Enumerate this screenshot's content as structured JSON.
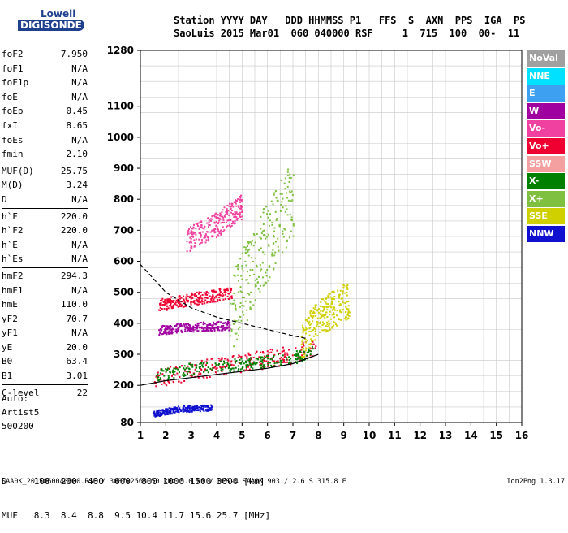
{
  "logo": {
    "line1": "Lowell",
    "line2": "DIGISONDE"
  },
  "header": {
    "row1": "Station YYYY DAY   DDD HHMMSS P1   FFS  S  AXN  PPS  IGA  PS",
    "row2": "SaoLuis 2015 Mar01  060 040000 RSF     1  715  100  00-  11"
  },
  "params": {
    "group1": [
      {
        "k": "foF2",
        "v": "7.950"
      },
      {
        "k": "foF1",
        "v": "N/A"
      },
      {
        "k": "foF1p",
        "v": "N/A"
      },
      {
        "k": "foE",
        "v": "N/A"
      },
      {
        "k": "foEp",
        "v": "0.45"
      },
      {
        "k": "fxI",
        "v": "8.65"
      },
      {
        "k": "foEs",
        "v": "N/A"
      },
      {
        "k": "fmin",
        "v": "2.10"
      }
    ],
    "group2": [
      {
        "k": "MUF(D)",
        "v": "25.75"
      },
      {
        "k": "M(D)",
        "v": "3.24"
      },
      {
        "k": "D",
        "v": "N/A"
      }
    ],
    "group3": [
      {
        "k": "h`F",
        "v": "220.0"
      },
      {
        "k": "h`F2",
        "v": "220.0"
      },
      {
        "k": "h`E",
        "v": "N/A"
      },
      {
        "k": "h`Es",
        "v": "N/A"
      }
    ],
    "group4": [
      {
        "k": "hmF2",
        "v": "294.3"
      },
      {
        "k": "hmF1",
        "v": "N/A"
      },
      {
        "k": "hmE",
        "v": "110.0"
      },
      {
        "k": "yF2",
        "v": "70.7"
      },
      {
        "k": "yF1",
        "v": "N/A"
      },
      {
        "k": "yE",
        "v": "20.0"
      },
      {
        "k": "B0",
        "v": "63.4"
      },
      {
        "k": "B1",
        "v": "3.01"
      }
    ],
    "group5": [
      {
        "k": "C-level",
        "v": "22"
      }
    ]
  },
  "auto": {
    "l1": "Auto:",
    "l2": "Artist5",
    "l3": "500200"
  },
  "dmuf": {
    "d_row": "D     100  200  400  600  800 1000 1500 3000 [km]",
    "muf_row": "MUF   8.3  8.4  8.8  9.5 10.4 11.7 15.6 25.7 [MHz]"
  },
  "footer": {
    "left": "SAA0K_2015060040000.RSF / 300fx256h 50 kHz 5.0 km / DPS-4 SAA0K 903 / 2.6 S 315.8 E",
    "right": "Ion2Png 1.3.17"
  },
  "legend": [
    {
      "label": "NoVal",
      "color": "#a0a0a0"
    },
    {
      "label": "NNE",
      "color": "#00e0ff"
    },
    {
      "label": "E",
      "color": "#3da0f0"
    },
    {
      "label": "W",
      "color": "#a000a0"
    },
    {
      "label": "Vo-",
      "color": "#f040a0"
    },
    {
      "label": "Vo+",
      "color": "#f00030"
    },
    {
      "label": "SSW",
      "color": "#f4a0a0"
    },
    {
      "label": "X-",
      "color": "#008000"
    },
    {
      "label": "X+",
      "color": "#80c040"
    },
    {
      "label": "SSE",
      "color": "#d0d000"
    },
    {
      "label": "NNW",
      "color": "#1010d0"
    }
  ],
  "chart_data": {
    "type": "scatter",
    "x_ticks": [
      "1",
      "2",
      "3",
      "4",
      "5",
      "6",
      "7",
      "8",
      "9",
      "10",
      "11",
      "12",
      "13",
      "14",
      "15",
      "16"
    ],
    "y_ticks": [
      "80",
      "200",
      "300",
      "400",
      "500",
      "600",
      "700",
      "800",
      "900",
      "1000",
      "1100",
      "1280"
    ],
    "xlim": [
      1,
      16
    ],
    "ylim": [
      80,
      1280
    ],
    "grid": true,
    "legend_position": "right",
    "clusters": [
      {
        "color": "#f00030",
        "x": [
          1.5,
          7.9
        ],
        "y": [
          200,
          320
        ],
        "trend": [
          [
            1.5,
            220
          ],
          [
            3,
            250
          ],
          [
            5,
            275
          ],
          [
            7,
            300
          ],
          [
            7.9,
            330
          ]
        ]
      },
      {
        "color": "#008000",
        "x": [
          1.6,
          7.8
        ],
        "y": [
          220,
          300
        ],
        "trend": [
          [
            1.6,
            235
          ],
          [
            3,
            255
          ],
          [
            5,
            270
          ],
          [
            7,
            290
          ],
          [
            7.8,
            310
          ]
        ]
      },
      {
        "color": "#a000a0",
        "x": [
          1.7,
          4.5
        ],
        "y": [
          360,
          420
        ],
        "trend": [
          [
            1.7,
            380
          ],
          [
            3,
            390
          ],
          [
            4.5,
            395
          ]
        ]
      },
      {
        "color": "#f00030",
        "x": [
          1.7,
          4.6
        ],
        "y": [
          440,
          520
        ],
        "trend": [
          [
            1.7,
            460
          ],
          [
            3,
            480
          ],
          [
            4.6,
            500
          ]
        ]
      },
      {
        "color": "#f040a0",
        "x": [
          2.8,
          5.0
        ],
        "y": [
          640,
          800
        ],
        "trend": [
          [
            2.8,
            670
          ],
          [
            4,
            720
          ],
          [
            5,
            780
          ]
        ]
      },
      {
        "color": "#d0d000",
        "x": [
          7.3,
          9.2
        ],
        "y": [
          320,
          560
        ],
        "trend": [
          [
            7.3,
            340
          ],
          [
            8,
            420
          ],
          [
            9.2,
            480
          ]
        ]
      },
      {
        "color": "#80c040",
        "x": [
          4.5,
          7.0
        ],
        "y": [
          380,
          900
        ],
        "trend": [
          [
            4.5,
            420
          ],
          [
            5.5,
            600
          ],
          [
            7,
            800
          ]
        ]
      },
      {
        "color": "#1010d0",
        "x": [
          1.5,
          3.8
        ],
        "y": [
          100,
          140
        ],
        "trend": [
          [
            1.5,
            110
          ],
          [
            2.5,
            125
          ],
          [
            3.8,
            130
          ]
        ]
      }
    ],
    "lines": [
      {
        "style": "dashed",
        "points": [
          [
            1,
            590
          ],
          [
            2,
            500
          ],
          [
            3,
            450
          ],
          [
            4,
            420
          ],
          [
            5,
            400
          ],
          [
            6,
            380
          ],
          [
            7,
            360
          ],
          [
            7.6,
            350
          ]
        ]
      },
      {
        "style": "solid",
        "points": [
          [
            1,
            200
          ],
          [
            2,
            215
          ],
          [
            3,
            225
          ],
          [
            4,
            235
          ],
          [
            5,
            245
          ],
          [
            6,
            255
          ],
          [
            7,
            270
          ],
          [
            8,
            300
          ]
        ]
      }
    ]
  }
}
